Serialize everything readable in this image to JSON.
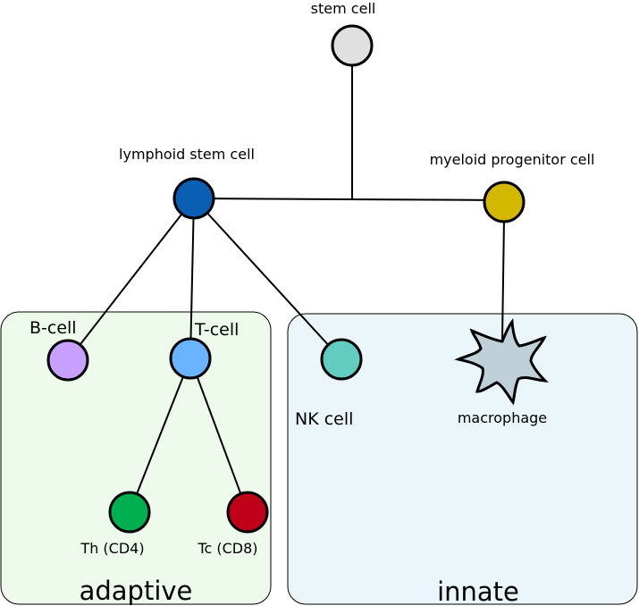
{
  "regions": {
    "adaptive": {
      "label": "adaptive",
      "fill": "#eefaec"
    },
    "innate": {
      "label": "innate",
      "fill": "#ebf6fb"
    }
  },
  "nodes": {
    "stem_cell": {
      "label": "stem cell",
      "color": "#e0e0e0"
    },
    "lymphoid_stem_cell": {
      "label": "lymphoid stem cell",
      "color": "#0a5fb4"
    },
    "myeloid_progenitor_cell": {
      "label": "myeloid progenitor cell",
      "color": "#d4b800"
    },
    "b_cell": {
      "label": "B-cell",
      "color": "#c8a0ff"
    },
    "t_cell": {
      "label": "T-cell",
      "color": "#6ab4ff"
    },
    "nk_cell": {
      "label": "NK cell",
      "color": "#62ccc0"
    },
    "macrophage": {
      "label": "macrophage",
      "color": "#c0d0d8"
    },
    "th_cd4": {
      "label": "Th (CD4)",
      "color": "#00b050"
    },
    "tc_cd8": {
      "label": "Tc (CD8)",
      "color": "#c00018"
    }
  }
}
